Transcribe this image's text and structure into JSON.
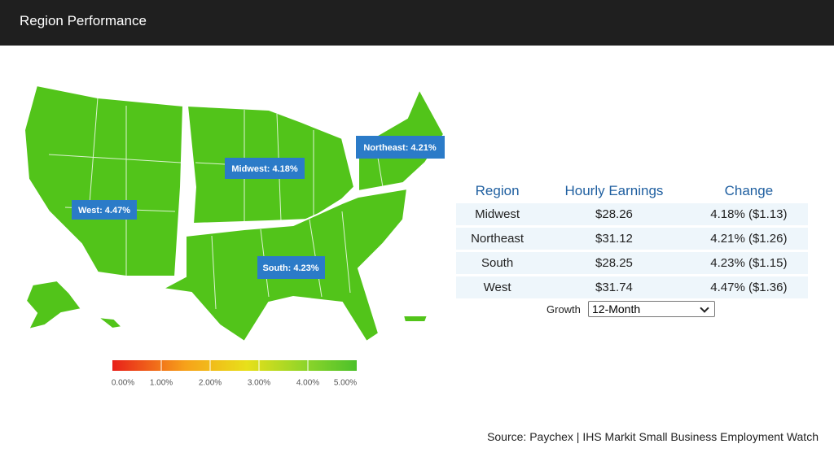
{
  "header": {
    "title": "Region Performance"
  },
  "map": {
    "labels": [
      "West: 4.47%",
      "Midwest: 4.18%",
      "Northeast: 4.21%",
      "South: 4.23%"
    ],
    "legend_ticks": [
      "0.00%",
      "1.00%",
      "2.00%",
      "3.00%",
      "4.00%",
      "5.00%"
    ]
  },
  "table": {
    "header": [
      "Region",
      "Hourly Earnings",
      "Change"
    ],
    "rows": [
      [
        "Midwest",
        "$28.26",
        "4.18% ($1.13)"
      ],
      [
        "Northeast",
        "$31.12",
        "4.21% ($1.26)"
      ],
      [
        "South",
        "$28.25",
        "4.23% ($1.15)"
      ],
      [
        "West",
        "$31.74",
        "4.47% ($1.36)"
      ]
    ]
  },
  "controls": {
    "growth_label": "Growth",
    "growth_value": "12-Month"
  },
  "footer": {
    "source": "Source: Paychex | IHS Markit Small Business Employment Watch"
  }
}
